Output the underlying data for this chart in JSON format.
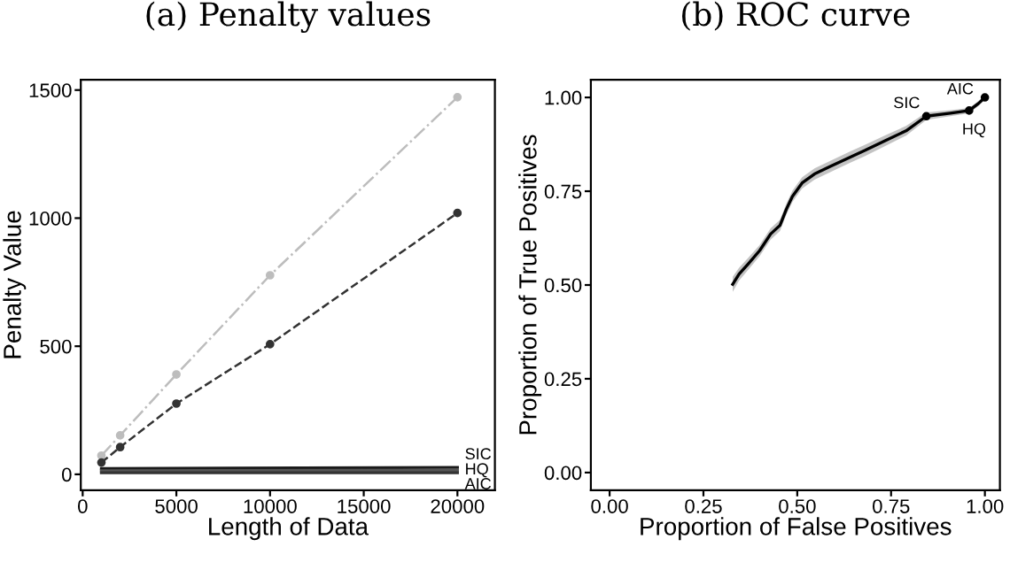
{
  "chart_data": [
    {
      "type": "line",
      "title": "(a) Penalty values",
      "xlabel": "Length of Data",
      "ylabel": "Penalty Value",
      "xlim": [
        -100,
        22000
      ],
      "ylim": [
        -62,
        1540
      ],
      "xticks": [
        0,
        5000,
        10000,
        15000,
        20000
      ],
      "yticks": [
        0,
        500,
        1000,
        1500
      ],
      "series": [
        {
          "color": "#bdbdbd",
          "line_style": "dashdot",
          "marker": "circle",
          "x": [
            1000,
            2000,
            5000,
            10000,
            20000
          ],
          "values": [
            73,
            152,
            390,
            777,
            1472
          ]
        },
        {
          "color": "#333333",
          "line_style": "dashed",
          "marker": "circle",
          "x": [
            1000,
            2000,
            5000,
            10000,
            20000
          ],
          "values": [
            46,
            106,
            276,
            508,
            1020
          ]
        },
        {
          "name": "SIC",
          "color": "#1a1a1a",
          "line_style": "solid",
          "marker": "none",
          "x": [
            1000,
            20000
          ],
          "values": [
            22,
            27
          ]
        },
        {
          "name": "HQ",
          "color": "#555555",
          "line_style": "solid",
          "marker": "none",
          "x": [
            1000,
            20000
          ],
          "values": [
            14,
            16
          ]
        },
        {
          "name": "AIC",
          "color": "#333333",
          "line_style": "solid",
          "marker": "none",
          "x": [
            1000,
            20000
          ],
          "values": [
            6,
            6
          ]
        }
      ]
    },
    {
      "type": "line",
      "title": "(b) ROC curve",
      "xlabel": "Proportion of False Positives",
      "ylabel": "Proportion of True Positives",
      "xlim": [
        -0.05,
        1.04
      ],
      "ylim": [
        -0.047,
        1.047
      ],
      "xticks": [
        {
          "value": 0,
          "label": "0.00"
        },
        0.25,
        {
          "value": 0.5,
          "label": "0.50"
        },
        0.75,
        {
          "value": 1,
          "label": "1.00"
        }
      ],
      "yticks": [
        {
          "value": 0,
          "label": "0.00"
        },
        0.25,
        {
          "value": 0.5,
          "label": "0.50"
        },
        0.75,
        {
          "value": 1,
          "label": "1.00"
        }
      ],
      "annotations": [
        {
          "text": "SIC",
          "x": 0.844,
          "y": 0.95
        },
        {
          "text": "HQ",
          "x": 0.958,
          "y": 0.965
        },
        {
          "text": "AIC",
          "x": 1.0,
          "y": 1.0
        }
      ],
      "series": [
        {
          "color": "#000000",
          "line_style": "solid",
          "marker": "none",
          "x": [
            0.328,
            0.345,
            0.37,
            0.4,
            0.429,
            0.454,
            0.471,
            0.487,
            0.513,
            0.546,
            0.588,
            0.639,
            0.681,
            0.739,
            0.79,
            0.844,
            0.908,
            0.958,
            0.983,
            1.0
          ],
          "values": [
            0.502,
            0.529,
            0.557,
            0.592,
            0.636,
            0.659,
            0.702,
            0.736,
            0.772,
            0.796,
            0.816,
            0.84,
            0.859,
            0.887,
            0.911,
            0.95,
            0.958,
            0.965,
            0.984,
            1.0
          ],
          "lower": [
            0.482,
            0.512,
            0.541,
            0.577,
            0.621,
            0.644,
            0.687,
            0.721,
            0.757,
            0.781,
            0.801,
            0.825,
            0.844,
            0.873,
            0.898,
            0.94,
            0.95,
            0.958,
            0.977,
            0.995
          ],
          "upper": [
            0.522,
            0.546,
            0.573,
            0.607,
            0.651,
            0.674,
            0.717,
            0.751,
            0.787,
            0.811,
            0.831,
            0.855,
            0.874,
            0.901,
            0.924,
            0.96,
            0.966,
            0.972,
            0.991,
            1.005
          ]
        },
        {
          "type": "scatter",
          "color": "#000000",
          "marker": "circle",
          "x": [
            0.844,
            0.958,
            1.0
          ],
          "values": [
            0.95,
            0.965,
            1.0
          ]
        }
      ]
    }
  ]
}
